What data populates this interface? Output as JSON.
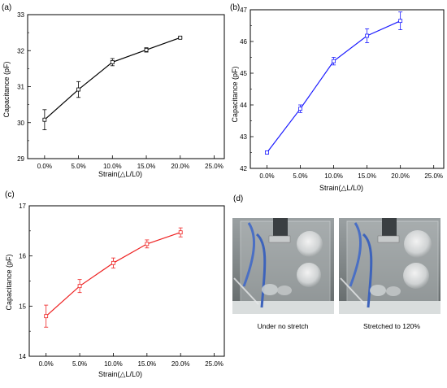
{
  "chart_data": [
    {
      "type": "line",
      "panel_label": "(a)",
      "xlabel": "Strain(△L/L0)",
      "ylabel": "Capacitance (pF)",
      "xlim": [
        -0.025,
        0.265
      ],
      "ylim": [
        29,
        33
      ],
      "xticks": [
        "0.0%",
        "5.0%",
        "10.0%",
        "15.0%",
        "20.0%",
        "25.0%"
      ],
      "yticks": [
        "29",
        "30",
        "31",
        "32",
        "33"
      ],
      "grid": false,
      "color": "#000000",
      "x": [
        0.0,
        0.05,
        0.1,
        0.15,
        0.2
      ],
      "y": [
        30.08,
        30.92,
        31.68,
        32.02,
        32.36
      ],
      "err": [
        0.28,
        0.22,
        0.1,
        0.06,
        0.02
      ]
    },
    {
      "type": "line",
      "panel_label": "(b)",
      "xlabel": "Strain(△L/L0)",
      "ylabel": "Capacitance (pF)",
      "xlim": [
        -0.025,
        0.265
      ],
      "ylim": [
        42,
        47
      ],
      "xticks": [
        "0.0%",
        "5.0%",
        "10.0%",
        "15.0%",
        "20.0%",
        "25.0%"
      ],
      "yticks": [
        "42",
        "43",
        "44",
        "45",
        "46",
        "47"
      ],
      "grid": false,
      "color": "#1a1aff",
      "x": [
        0.0,
        0.05,
        0.1,
        0.15,
        0.2
      ],
      "y": [
        42.5,
        43.88,
        45.38,
        46.18,
        46.65
      ],
      "err": [
        0.05,
        0.12,
        0.12,
        0.22,
        0.28
      ]
    },
    {
      "type": "line",
      "panel_label": "(c)",
      "xlabel": "Strain(△L/L0)",
      "ylabel": "Capacitance (pF)",
      "xlim": [
        -0.025,
        0.265
      ],
      "ylim": [
        14,
        17
      ],
      "xticks": [
        "0.0%",
        "5.0%",
        "10.0%",
        "15.0%",
        "20.0%",
        "25.0%"
      ],
      "yticks": [
        "14",
        "15",
        "16",
        "17"
      ],
      "grid": false,
      "color": "#ee2222",
      "x": [
        0.0,
        0.05,
        0.1,
        0.15,
        0.2
      ],
      "y": [
        14.8,
        15.4,
        15.86,
        16.24,
        16.47
      ],
      "err": [
        0.22,
        0.13,
        0.1,
        0.08,
        0.09
      ]
    }
  ],
  "photos": {
    "panel_label": "(d)",
    "left_caption": "Under no stretch",
    "right_caption": "Stretched to 120%"
  }
}
